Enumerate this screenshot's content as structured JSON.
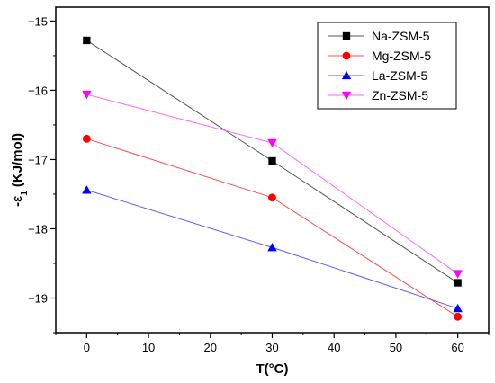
{
  "chart_data": {
    "type": "line",
    "xlabel": "T(°C)",
    "ylabel": "-ε",
    "ylabel_sub": "1",
    "ylabel_unit": " (KJ/mol)",
    "xlim": [
      -5,
      65
    ],
    "ylim": [
      -19.5,
      -14.8
    ],
    "xticks": [
      0,
      10,
      20,
      30,
      40,
      50,
      60
    ],
    "yticks": [
      -15,
      -16,
      -17,
      -18,
      -19
    ],
    "x": [
      0,
      30,
      60
    ],
    "legend_position": "top-right",
    "series": [
      {
        "name": "Na-ZSM-5",
        "marker": "square",
        "color": "#000000",
        "line_color": "#555555",
        "values": [
          -15.28,
          -17.02,
          -18.78
        ]
      },
      {
        "name": "Mg-ZSM-5",
        "marker": "circle",
        "color": "#ff0000",
        "line_color": "#ff4d4d",
        "values": [
          -16.7,
          -17.55,
          -19.27
        ]
      },
      {
        "name": "La-ZSM-5",
        "marker": "triangle-up",
        "color": "#0000ff",
        "line_color": "#5b5bff",
        "values": [
          -17.44,
          -18.27,
          -19.15
        ]
      },
      {
        "name": "Zn-ZSM-5",
        "marker": "triangle-down",
        "color": "#ff00ff",
        "line_color": "#ff66ff",
        "values": [
          -16.06,
          -16.76,
          -18.65
        ]
      }
    ]
  }
}
